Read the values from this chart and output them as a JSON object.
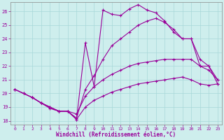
{
  "xlabel": "Windchill (Refroidissement éolien,°C)",
  "bg_color": "#ceeeed",
  "line_color": "#990099",
  "grid_color": "#a8d8d8",
  "xlim": [
    -0.5,
    23.5
  ],
  "ylim": [
    17.7,
    26.7
  ],
  "xticks": [
    0,
    1,
    2,
    3,
    4,
    5,
    6,
    7,
    8,
    9,
    10,
    11,
    12,
    13,
    14,
    15,
    16,
    17,
    18,
    19,
    20,
    21,
    22,
    23
  ],
  "yticks": [
    18,
    19,
    20,
    21,
    22,
    23,
    24,
    25,
    26
  ],
  "lines": [
    {
      "x": [
        0,
        1,
        2,
        3,
        4,
        5,
        6,
        7,
        8,
        9,
        10,
        11,
        12,
        13,
        14,
        15,
        16,
        17,
        18,
        19,
        20,
        21,
        22,
        23
      ],
      "y": [
        20.3,
        20.0,
        19.7,
        19.3,
        19.0,
        18.7,
        18.7,
        18.1,
        19.0,
        19.5,
        19.8,
        20.1,
        20.3,
        20.5,
        20.7,
        20.8,
        20.9,
        21.0,
        21.1,
        21.2,
        21.0,
        20.7,
        20.6,
        20.7
      ]
    },
    {
      "x": [
        0,
        1,
        2,
        3,
        4,
        5,
        6,
        7,
        8,
        9,
        10,
        11,
        12,
        13,
        14,
        15,
        16,
        17,
        18,
        19,
        20,
        21,
        22,
        23
      ],
      "y": [
        20.3,
        20.0,
        19.7,
        19.3,
        19.0,
        18.7,
        18.7,
        18.5,
        19.8,
        20.5,
        21.0,
        21.4,
        21.7,
        22.0,
        22.2,
        22.3,
        22.4,
        22.5,
        22.5,
        22.5,
        22.5,
        22.0,
        21.7,
        21.0
      ]
    },
    {
      "x": [
        0,
        1,
        2,
        3,
        4,
        5,
        6,
        7,
        8,
        9,
        10,
        11,
        12,
        13,
        14,
        15,
        16,
        17,
        18,
        19,
        20,
        21,
        22,
        23
      ],
      "y": [
        20.3,
        20.0,
        19.7,
        19.3,
        19.0,
        18.7,
        18.7,
        18.1,
        23.7,
        20.5,
        26.1,
        25.8,
        25.7,
        26.2,
        26.5,
        26.1,
        25.9,
        25.3,
        24.5,
        24.0,
        24.0,
        22.5,
        22.0,
        21.0
      ]
    },
    {
      "x": [
        2,
        3,
        4,
        5,
        6,
        7,
        8,
        9,
        10,
        11,
        12,
        13,
        14,
        15,
        16,
        17,
        18,
        19,
        20,
        21,
        22,
        23
      ],
      "y": [
        19.7,
        19.3,
        18.9,
        18.7,
        18.7,
        18.2,
        20.3,
        21.3,
        22.5,
        23.5,
        24.0,
        24.5,
        25.0,
        25.3,
        25.5,
        25.2,
        24.7,
        24.0,
        24.0,
        22.0,
        22.0,
        20.7
      ]
    }
  ]
}
